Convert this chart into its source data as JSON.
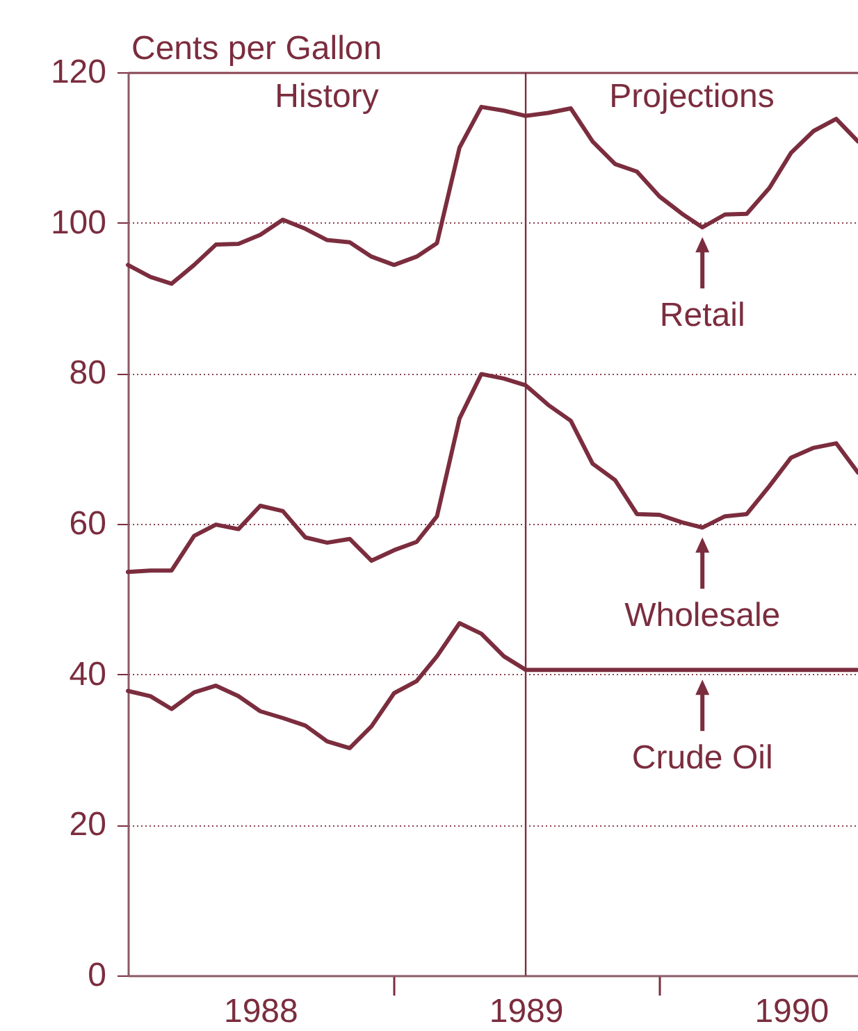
{
  "chart_data": {
    "type": "line",
    "ylabel": "Cents per Gallon",
    "x": [
      "1988-01",
      "1988-02",
      "1988-03",
      "1988-04",
      "1988-05",
      "1988-06",
      "1988-07",
      "1988-08",
      "1988-09",
      "1988-10",
      "1988-11",
      "1988-12",
      "1989-01",
      "1989-02",
      "1989-03",
      "1989-04",
      "1989-05",
      "1989-06",
      "1989-07",
      "1989-08",
      "1989-09",
      "1989-10",
      "1989-11",
      "1989-12",
      "1990-01",
      "1990-02",
      "1990-03",
      "1990-04",
      "1990-05",
      "1990-06",
      "1990-07",
      "1990-08",
      "1990-09",
      "1990-10"
    ],
    "series": [
      {
        "color": "#7b2d3e",
        "values": [
          94.4,
          92.8,
          91.9,
          94.4,
          97.1,
          97.2,
          98.4,
          100.4,
          99.2,
          97.7,
          97.4,
          95.5,
          94.4,
          95.5,
          97.3,
          110.0,
          115.4,
          114.9,
          114.2,
          114.6,
          115.2,
          110.8,
          107.8,
          106.8,
          103.5,
          101.2,
          99.4,
          101.1,
          101.2,
          104.6,
          109.3,
          112.2,
          113.8,
          110.8
        ]
      },
      {
        "color": "#7b2d3e",
        "values": [
          53.6,
          53.8,
          53.8,
          58.4,
          59.9,
          59.3,
          62.4,
          61.7,
          58.2,
          57.5,
          58.0,
          55.1,
          56.5,
          57.6,
          61.0,
          74.0,
          79.9,
          79.3,
          78.4,
          75.8,
          73.7,
          68.0,
          65.8,
          61.3,
          61.2,
          60.2,
          59.5,
          61.0,
          61.3,
          65.0,
          68.8,
          70.1,
          70.7,
          66.8
        ]
      },
      {
        "color": "#7b2d3e",
        "values": [
          37.8,
          37.1,
          35.4,
          37.6,
          38.5,
          37.1,
          35.1,
          34.2,
          33.2,
          31.1,
          30.2,
          33.1,
          37.5,
          39.1,
          42.4,
          46.8,
          45.4,
          42.4,
          40.6,
          40.6,
          40.6,
          40.6,
          40.6,
          40.6,
          40.6,
          40.6,
          40.6,
          40.6,
          40.6,
          40.6,
          40.6,
          40.6,
          40.6,
          40.6
        ]
      }
    ],
    "xlim": [
      "1988-01",
      "1990-10"
    ],
    "xticks": [
      {
        "value": "1988-07",
        "label": "1988"
      },
      {
        "value": "1989-01",
        "label": null
      },
      {
        "value": "1989-07",
        "label": "1989"
      },
      {
        "value": "1990-01",
        "label": null
      },
      {
        "value": "1990-07",
        "label": "1990"
      }
    ],
    "ylim": [
      0,
      120
    ],
    "yticks": [
      0,
      20,
      40,
      60,
      80,
      100,
      120
    ],
    "grid": "y",
    "ref_lines": [
      {
        "axis": "x",
        "value": "1989-07",
        "color": "#7b2d3e"
      }
    ],
    "annotations": [
      "History",
      "Projections",
      {
        "text": "Retail",
        "x": "1990-03",
        "y": 99.4
      },
      {
        "text": "Wholesale",
        "x": "1990-03",
        "y": 59.5
      },
      {
        "text": "Crude Oil",
        "x": "1990-03",
        "y": 40.6
      }
    ]
  }
}
